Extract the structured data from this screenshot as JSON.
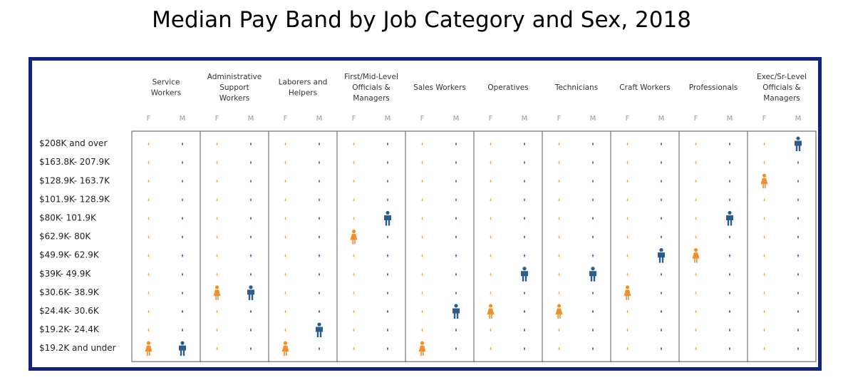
{
  "title": "Median Pay Band by Job Category and Sex, 2018",
  "chart_data": {
    "type": "pictograph",
    "categories": [
      "Service Workers",
      "Administrative Support Workers",
      "Laborers and Helpers",
      "First/Mid-Level Officials & Managers",
      "Sales Workers",
      "Operatives",
      "Technicians",
      "Craft Workers",
      "Professionals",
      "Exec/Sr-Level Officials & Managers"
    ],
    "sexes": [
      "F",
      "M"
    ],
    "pay_bands": [
      "$208K and over",
      "$163.8K- 207.9K",
      "$128.9K- 163.7K",
      "$101.9K- 128.9K",
      "$80K- 101.9K",
      "$62.9K- 80K",
      "$49.9K- 62.9K",
      "$39K- 49.9K",
      "$30.6K- 38.9K",
      "$24.4K- 30.6K",
      "$19.2K- 24.4K",
      "$19.2K and under"
    ],
    "median_band": {
      "F": [
        "$19.2K and under",
        "$30.6K- 38.9K",
        "$19.2K and under",
        "$62.9K- 80K",
        "$19.2K and under",
        "$24.4K- 30.6K",
        "$24.4K- 30.6K",
        "$30.6K- 38.9K",
        "$49.9K- 62.9K",
        "$128.9K- 163.7K"
      ],
      "M": [
        "$19.2K and under",
        "$30.6K- 38.9K",
        "$19.2K- 24.4K",
        "$80K- 101.9K",
        "$24.4K- 30.6K",
        "$39K- 49.9K",
        "$39K- 49.9K",
        "$49.9K- 62.9K",
        "$80K- 101.9K",
        "$208K and over"
      ]
    },
    "colors": {
      "F": "#f28e2b",
      "M": "#2d5b8a",
      "border": "#13237a"
    }
  }
}
